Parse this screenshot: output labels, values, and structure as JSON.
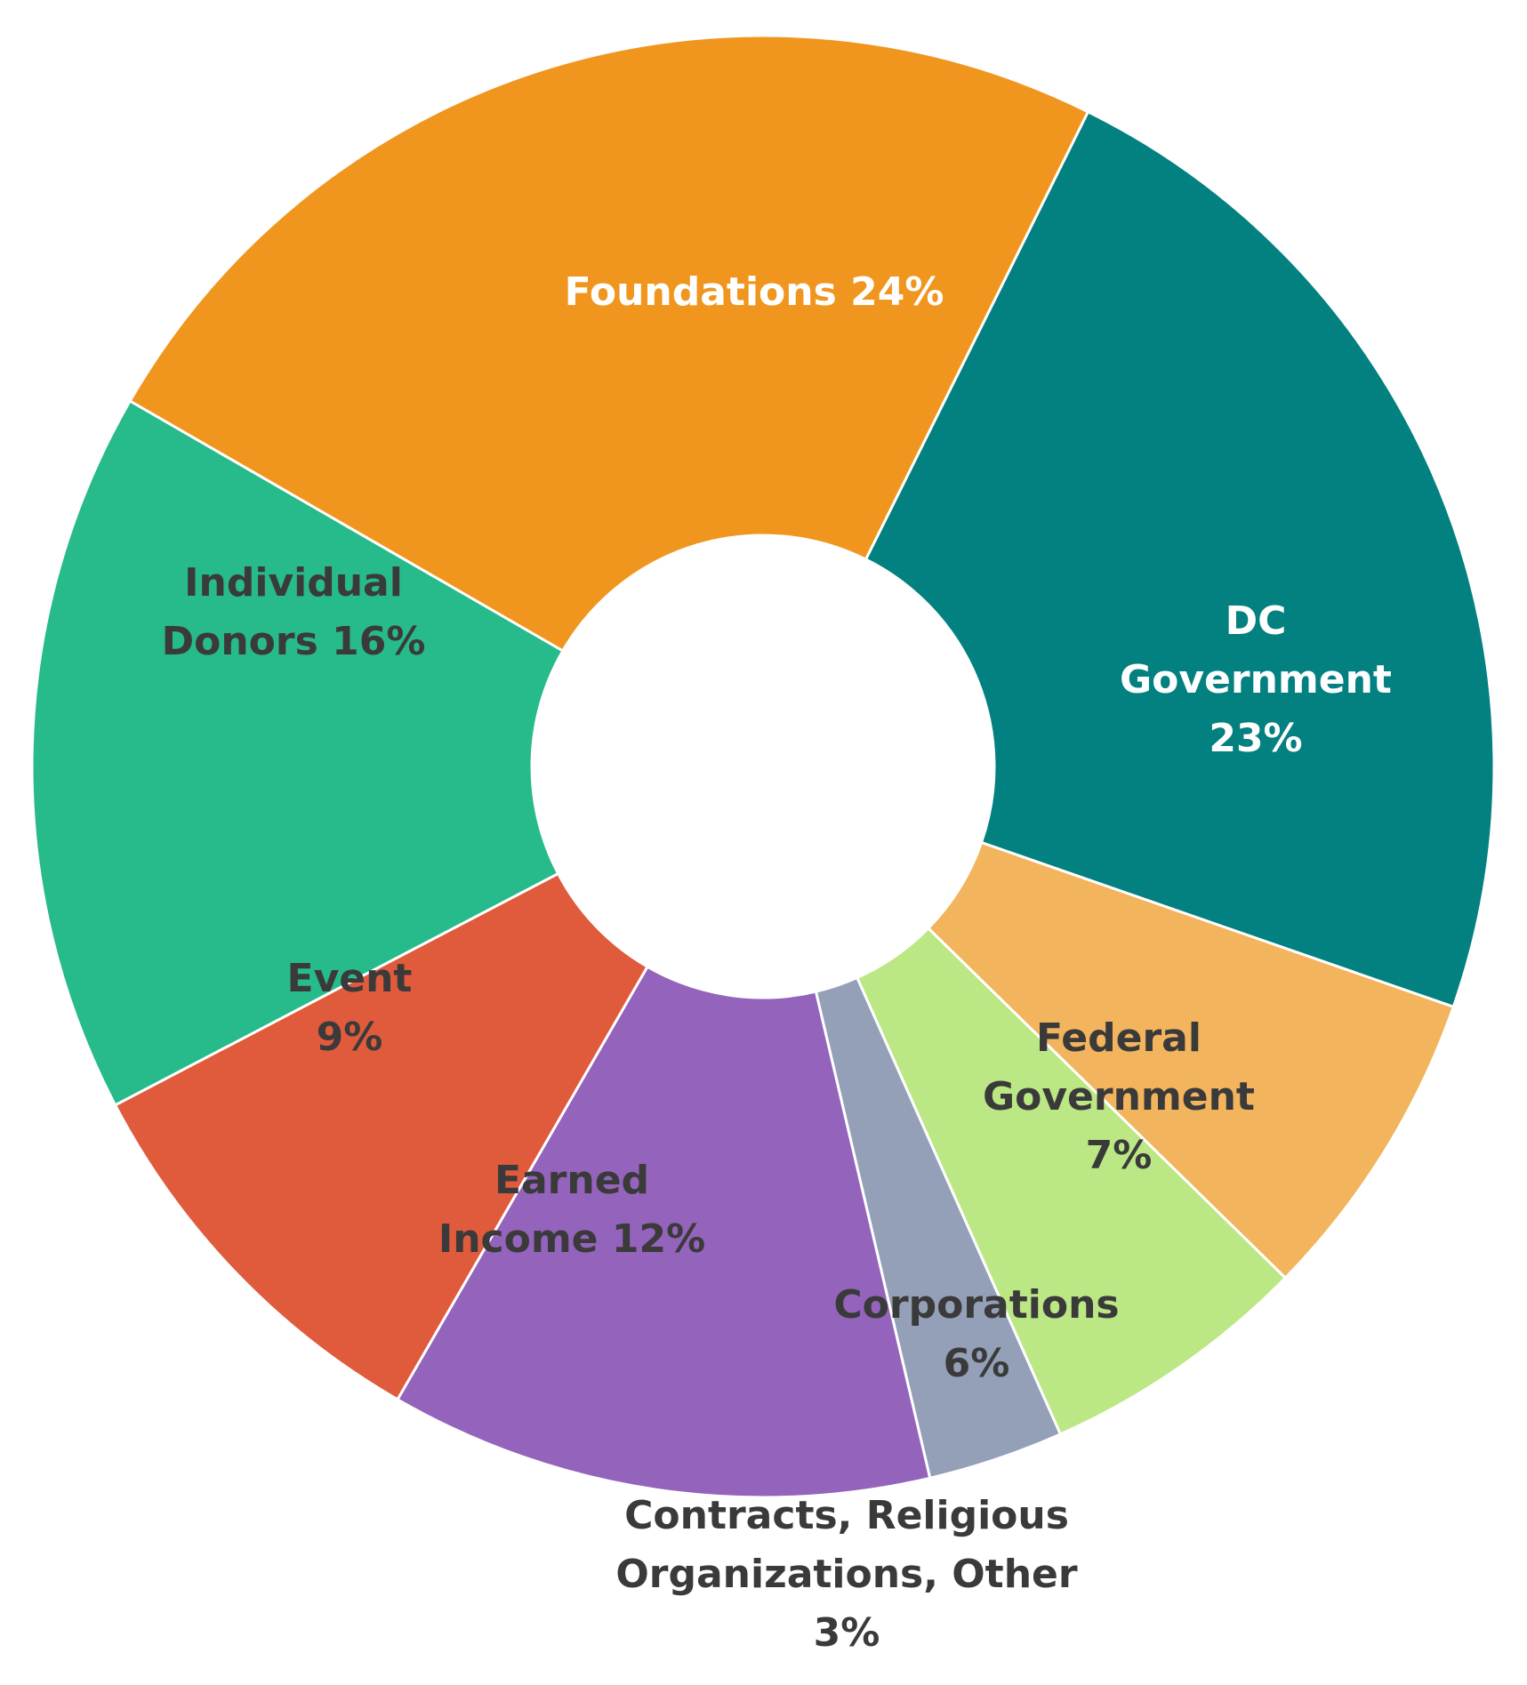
{
  "chart_data": {
    "type": "pie",
    "variant": "donut",
    "title": "",
    "slices": [
      {
        "label_lines": [
          "Foundations 24%"
        ],
        "category": "Foundations",
        "value": 24,
        "color": "#F0961E",
        "label_color": "#FFFFFF"
      },
      {
        "label_lines": [
          "DC",
          "Government",
          "23%"
        ],
        "category": "DC Government",
        "value": 23,
        "color": "#038080",
        "label_color": "#FFFFFF"
      },
      {
        "label_lines": [
          "Federal",
          "Government",
          "7%"
        ],
        "category": "Federal Government",
        "value": 7,
        "color": "#F2B45C",
        "label_color": "#3A3A3A"
      },
      {
        "label_lines": [
          "Corporations",
          "6%"
        ],
        "category": "Corporations",
        "value": 6,
        "color": "#BBE784",
        "label_color": "#3A3A3A"
      },
      {
        "label_lines": [
          "Contracts, Religious",
          "Organizations, Other",
          "3%"
        ],
        "category": "Contracts, Religious Organizations, Other",
        "value": 3,
        "color": "#94A0B8",
        "label_color": "#3A3A3A"
      },
      {
        "label_lines": [
          "Earned",
          "Income 12%"
        ],
        "category": "Earned Income",
        "value": 12,
        "color": "#9463BB",
        "label_color": "#3A3A3A"
      },
      {
        "label_lines": [
          "Event",
          "9%"
        ],
        "category": "Event",
        "value": 9,
        "color": "#E05A3C",
        "label_color": "#3A3A3A"
      },
      {
        "label_lines": [
          "Individual",
          "Donors 16%"
        ],
        "category": "Individual Donors",
        "value": 16,
        "color": "#27BA8B",
        "label_color": "#3A3A3A"
      }
    ],
    "legend": "none",
    "slice_border_color": "#FFFFFF"
  }
}
